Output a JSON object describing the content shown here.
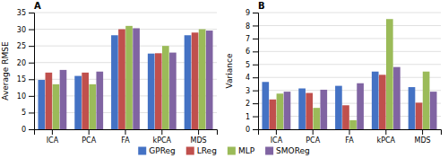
{
  "chart_data": [
    {
      "type": "bar",
      "title": "A",
      "ylabel": "Average RMSE",
      "categories": [
        "ICA",
        "PCA",
        "FA",
        "kPCA",
        "MDS"
      ],
      "series": [
        {
          "name": "GPReg",
          "color": "#4472C4",
          "values": [
            14.8,
            16.0,
            28.2,
            22.7,
            28.2
          ]
        },
        {
          "name": "LReg",
          "color": "#C0504D",
          "values": [
            17.0,
            17.0,
            30.0,
            22.8,
            29.0
          ]
        },
        {
          "name": "MLP",
          "color": "#9BBB59",
          "values": [
            13.5,
            13.5,
            31.0,
            25.0,
            30.0
          ]
        },
        {
          "name": "SMOReg",
          "color": "#8064A2",
          "values": [
            17.8,
            17.3,
            30.3,
            23.0,
            29.6
          ]
        }
      ],
      "ylim": [
        0,
        35
      ],
      "yticks": [
        0,
        5,
        10,
        15,
        20,
        25,
        30,
        35
      ],
      "grid": true,
      "legend": "bottom"
    },
    {
      "type": "bar",
      "title": "B",
      "ylabel": "Variance",
      "categories": [
        "ICA",
        "PCA",
        "FA",
        "kPCA",
        "MDS"
      ],
      "series": [
        {
          "name": "GPReg",
          "color": "#4472C4",
          "values": [
            3.65,
            3.15,
            3.35,
            4.45,
            3.25
          ]
        },
        {
          "name": "LReg",
          "color": "#C0504D",
          "values": [
            2.3,
            2.8,
            1.85,
            4.2,
            2.05
          ]
        },
        {
          "name": "MLP",
          "color": "#9BBB59",
          "values": [
            2.75,
            1.65,
            0.7,
            8.5,
            4.45
          ]
        },
        {
          "name": "SMOReg",
          "color": "#8064A2",
          "values": [
            2.9,
            3.05,
            3.55,
            4.8,
            2.9
          ]
        }
      ],
      "ylim": [
        0,
        9
      ],
      "yticks": [
        0,
        1,
        2,
        3,
        4,
        5,
        6,
        7,
        8,
        9
      ],
      "grid": true
    }
  ]
}
